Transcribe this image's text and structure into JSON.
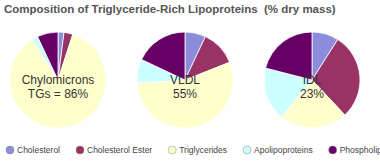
{
  "chart_data": {
    "type": "pie",
    "title": "Composition of Triglyceride-Rich Lipoproteins  (% dry mass)",
    "categories": [
      "Cholesterol",
      "Cholesterol Ester",
      "Triglycerides",
      "Apolipoproteins",
      "Phospholipids"
    ],
    "colors": [
      "#8c8cdc",
      "#993366",
      "#ffffcc",
      "#ccffff",
      "#660066"
    ],
    "series": [
      {
        "name": "Chylomicrons",
        "values": [
          2,
          3,
          86,
          2,
          7
        ],
        "value_labels": [
          null,
          null,
          "TGs = 86%",
          null,
          null
        ]
      },
      {
        "name": "VLDL",
        "values": [
          7,
          12,
          55,
          8,
          18
        ],
        "value_labels": [
          null,
          null,
          "55%",
          null,
          null
        ]
      },
      {
        "name": "IDL",
        "values": [
          9,
          29,
          23,
          18,
          21
        ],
        "value_labels": [
          null,
          null,
          "23%",
          null,
          null
        ]
      }
    ],
    "legend": "bottom",
    "data_labels": true
  }
}
